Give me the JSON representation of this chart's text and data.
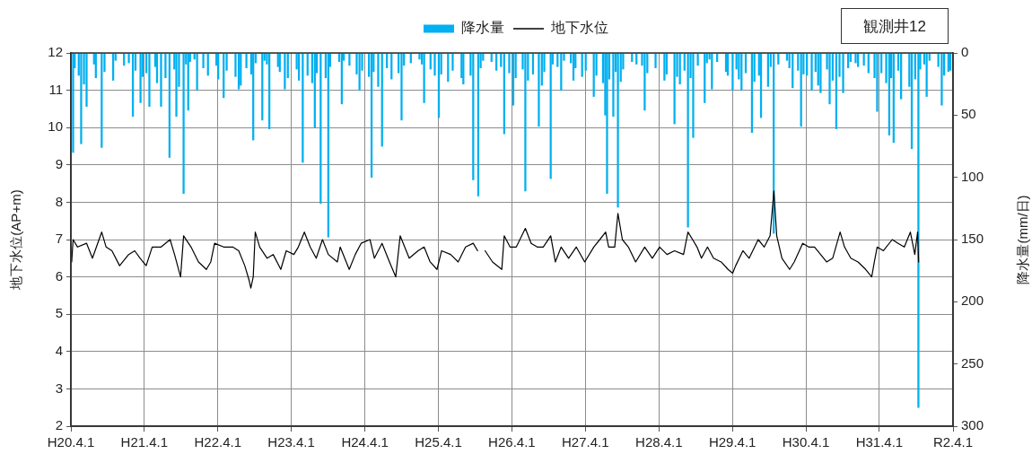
{
  "chart_data": {
    "type": "bar",
    "title": "観測井12",
    "ylabel": "地下水位(AP+m)",
    "y2label": "降水量(mm/日)",
    "xlim": [
      "2008-04-01",
      "2020-04-01"
    ],
    "xticks": [
      {
        "value": "2008-04-01",
        "label": "H20.4.1"
      },
      {
        "value": "2009-04-01",
        "label": "H21.4.1"
      },
      {
        "value": "2010-04-01",
        "label": "H22.4.1"
      },
      {
        "value": "2011-04-01",
        "label": "H23.4.1"
      },
      {
        "value": "2012-04-01",
        "label": "H24.4.1"
      },
      {
        "value": "2013-04-01",
        "label": "H25.4.1"
      },
      {
        "value": "2014-04-01",
        "label": "H26.4.1"
      },
      {
        "value": "2015-04-01",
        "label": "H27.4.1"
      },
      {
        "value": "2016-04-01",
        "label": "H28.4.1"
      },
      {
        "value": "2017-04-01",
        "label": "H29.4.1"
      },
      {
        "value": "2018-04-01",
        "label": "H30.4.1"
      },
      {
        "value": "2019-04-01",
        "label": "H31.4.1"
      },
      {
        "value": "2020-04-01",
        "label": "R2.4.1"
      }
    ],
    "ylim": [
      2,
      12
    ],
    "yticks": [
      2,
      3,
      4,
      5,
      6,
      7,
      8,
      9,
      10,
      11,
      12
    ],
    "y2lim": [
      300,
      0
    ],
    "y2ticks": [
      0,
      50,
      100,
      150,
      200,
      250,
      300
    ],
    "grid": true,
    "legend": "top",
    "series": [
      {
        "name": "降水量",
        "axis": "y2",
        "color": "#00b0f0",
        "x": [
          "2008-04-12",
          "2008-04-20",
          "2008-05-10",
          "2008-05-22",
          "2008-06-05",
          "2008-06-18",
          "2008-07-25",
          "2008-08-03",
          "2008-09-01",
          "2008-09-15",
          "2008-10-28",
          "2008-11-09",
          "2008-12-21",
          "2009-01-14",
          "2009-02-03",
          "2009-02-16",
          "2009-03-13",
          "2009-03-24",
          "2009-04-11",
          "2009-04-26",
          "2009-05-25",
          "2009-06-03",
          "2009-06-23",
          "2009-07-15",
          "2009-08-04",
          "2009-08-28",
          "2009-09-07",
          "2009-09-20",
          "2009-10-13",
          "2009-10-25",
          "2009-11-05",
          "2009-11-14",
          "2009-12-06",
          "2009-12-19",
          "2010-01-19",
          "2010-02-11",
          "2010-03-25",
          "2010-04-03",
          "2010-04-30",
          "2010-05-15",
          "2010-06-28",
          "2010-07-14",
          "2010-07-24",
          "2010-08-21",
          "2010-09-14",
          "2010-09-24",
          "2010-10-06",
          "2010-11-08",
          "2010-11-19",
          "2010-12-01",
          "2010-12-13",
          "2011-01-25",
          "2011-02-03",
          "2011-02-28",
          "2011-03-15",
          "2011-04-28",
          "2011-05-09",
          "2011-05-28",
          "2011-06-21",
          "2011-07-14",
          "2011-07-27",
          "2011-08-06",
          "2011-08-25",
          "2011-09-19",
          "2011-10-02",
          "2011-10-11",
          "2011-11-25",
          "2011-12-08",
          "2011-12-18",
          "2012-01-15",
          "2012-02-20",
          "2012-03-05",
          "2012-03-18",
          "2012-04-21",
          "2012-05-04",
          "2012-05-14",
          "2012-06-06",
          "2012-06-25",
          "2012-07-19",
          "2012-08-11",
          "2012-09-15",
          "2012-09-30",
          "2012-10-12",
          "2012-11-15",
          "2012-12-28",
          "2013-01-09",
          "2013-01-20",
          "2013-02-21",
          "2013-03-14",
          "2013-04-03",
          "2013-04-15",
          "2013-05-19",
          "2013-06-11",
          "2013-07-25",
          "2013-08-03",
          "2013-09-08",
          "2013-09-21",
          "2013-10-16",
          "2013-10-28",
          "2013-11-09",
          "2013-12-21",
          "2014-01-14",
          "2014-02-06",
          "2014-02-22",
          "2014-03-19",
          "2014-04-08",
          "2014-04-20",
          "2014-05-25",
          "2014-06-07",
          "2014-06-20",
          "2014-07-15",
          "2014-08-13",
          "2014-08-28",
          "2014-09-09",
          "2014-10-11",
          "2014-10-21",
          "2014-11-14",
          "2014-12-02",
          "2014-12-16",
          "2015-01-19",
          "2015-02-01",
          "2015-02-11",
          "2015-03-16",
          "2015-04-03",
          "2015-05-13",
          "2015-05-26",
          "2015-06-28",
          "2015-07-09",
          "2015-07-18",
          "2015-07-29",
          "2015-08-18",
          "2015-08-30",
          "2015-09-10",
          "2015-09-24",
          "2015-10-06",
          "2015-11-19",
          "2015-12-11",
          "2016-01-08",
          "2016-01-21",
          "2016-02-03",
          "2016-03-15",
          "2016-04-28",
          "2016-05-09",
          "2016-06-17",
          "2016-06-30",
          "2016-07-14",
          "2016-08-06",
          "2016-08-23",
          "2016-09-05",
          "2016-09-18",
          "2016-10-11",
          "2016-11-14",
          "2016-11-25",
          "2016-12-08",
          "2016-12-20",
          "2017-01-15",
          "2017-02-28",
          "2017-03-09",
          "2017-04-02",
          "2017-04-21",
          "2017-05-03",
          "2017-05-16",
          "2017-06-06",
          "2017-07-07",
          "2017-07-19",
          "2017-08-11",
          "2017-08-21",
          "2017-09-25",
          "2017-10-08",
          "2017-10-23",
          "2017-11-15",
          "2017-12-28",
          "2018-01-09",
          "2018-01-25",
          "2018-02-21",
          "2018-03-08",
          "2018-03-20",
          "2018-04-06",
          "2018-04-30",
          "2018-05-19",
          "2018-06-01",
          "2018-06-13",
          "2018-07-15",
          "2018-07-28",
          "2018-08-12",
          "2018-08-30",
          "2018-09-15",
          "2018-10-03",
          "2018-10-28",
          "2018-11-09",
          "2018-12-04",
          "2018-12-16",
          "2019-01-14",
          "2019-02-06",
          "2019-03-08",
          "2019-03-21",
          "2019-04-11",
          "2019-05-05",
          "2019-05-20",
          "2019-05-30",
          "2019-06-11",
          "2019-07-04",
          "2019-07-18",
          "2019-08-28",
          "2019-09-09",
          "2019-09-26",
          "2019-10-12",
          "2019-10-21",
          "2019-11-10",
          "2019-11-22",
          "2019-12-06",
          "2020-01-19",
          "2020-02-05",
          "2020-02-17",
          "2020-03-09",
          "2020-03-19"
        ],
        "values": [
          80,
          12,
          18,
          73,
          25,
          43,
          9,
          20,
          76,
          15,
          22,
          6,
          10,
          8,
          51,
          14,
          40,
          19,
          16,
          43,
          11,
          24,
          43,
          20,
          84,
          13,
          51,
          27,
          113,
          9,
          46,
          7,
          5,
          30,
          12,
          18,
          10,
          21,
          36,
          14,
          19,
          29,
          26,
          12,
          17,
          70,
          8,
          54,
          6,
          9,
          61,
          11,
          15,
          29,
          20,
          13,
          22,
          88,
          18,
          24,
          60,
          16,
          121,
          20,
          148,
          11,
          7,
          41,
          6,
          10,
          17,
          30,
          14,
          19,
          100,
          15,
          27,
          75,
          12,
          21,
          16,
          54,
          10,
          8,
          5,
          9,
          40,
          13,
          18,
          52,
          17,
          23,
          14,
          20,
          25,
          18,
          102,
          115,
          12,
          6,
          7,
          14,
          11,
          65,
          16,
          42,
          20,
          13,
          111,
          22,
          17,
          59,
          26,
          15,
          101,
          9,
          11,
          30,
          6,
          8,
          22,
          12,
          19,
          14,
          35,
          18,
          24,
          50,
          113,
          21,
          51,
          15,
          124,
          23,
          13,
          7,
          9,
          10,
          46,
          16,
          12,
          22,
          17,
          57,
          19,
          25,
          14,
          140,
          20,
          68,
          10,
          40,
          8,
          5,
          29,
          7,
          15,
          18,
          30,
          13,
          21,
          30,
          16,
          64,
          23,
          18,
          52,
          27,
          11,
          145,
          9,
          6,
          12,
          28,
          14,
          59,
          17,
          18,
          30,
          15,
          26,
          32,
          13,
          41,
          22,
          61,
          19,
          32,
          12,
          7,
          8,
          11,
          10,
          16,
          20,
          47,
          16,
          24,
          66,
          20,
          72,
          14,
          37,
          27,
          77,
          21,
          285,
          13,
          9,
          35,
          6,
          11,
          42,
          18,
          15,
          14
        ]
      },
      {
        "name": "地下水位",
        "type": "line",
        "color": "#000000",
        "x": [
          "2008-04-05",
          "2008-04-12",
          "2008-05-04",
          "2008-06-18",
          "2008-07-17",
          "2008-09-01",
          "2008-09-23",
          "2008-10-22",
          "2008-11-29",
          "2009-01-13",
          "2009-02-12",
          "2009-03-11",
          "2009-04-10",
          "2009-05-10",
          "2009-06-23",
          "2009-08-07",
          "2009-08-29",
          "2009-09-28",
          "2009-10-13",
          "2009-11-19",
          "2009-12-26",
          "2010-02-03",
          "2010-02-25",
          "2010-03-16",
          "2010-04-30",
          "2010-06-14",
          "2010-07-14",
          "2010-08-13",
          "2010-09-04",
          "2010-09-12",
          "2010-09-24",
          "2010-10-04",
          "2010-10-26",
          "2010-12-02",
          "2011-01-01",
          "2011-02-08",
          "2011-03-07",
          "2011-04-14",
          "2011-05-06",
          "2011-06-05",
          "2011-07-04",
          "2011-08-03",
          "2011-09-03",
          "2011-10-02",
          "2011-11-16",
          "2011-11-30",
          "2012-01-14",
          "2012-02-13",
          "2012-03-13",
          "2012-04-26",
          "2012-05-18",
          "2012-06-25",
          "2012-08-01",
          "2012-09-01",
          "2012-09-23",
          "2012-11-07",
          "2012-12-21",
          "2013-01-20",
          "2013-02-19",
          "2013-03-25",
          "2013-04-17",
          "2013-06-01",
          "2013-07-08",
          "2013-08-14",
          "2013-09-21",
          "2013-10-13",
          "2013-11-01",
          "2013-11-19",
          "2013-12-26",
          "2014-02-10",
          "2014-02-22",
          "2014-03-23",
          "2014-04-23",
          "2014-06-07",
          "2014-07-06",
          "2014-08-05",
          "2014-09-04",
          "2014-10-11",
          "2014-11-03",
          "2014-12-02",
          "2015-01-08",
          "2015-02-15",
          "2015-03-29",
          "2015-05-13",
          "2015-06-12",
          "2015-07-11",
          "2015-07-26",
          "2015-08-25",
          "2015-09-10",
          "2015-10-02",
          "2015-11-01",
          "2015-12-07",
          "2016-01-21",
          "2016-02-28",
          "2016-04-04",
          "2016-05-11",
          "2016-06-17",
          "2016-08-01",
          "2016-08-23",
          "2016-09-15",
          "2016-10-07",
          "2016-10-29",
          "2016-11-28",
          "2016-12-28",
          "2017-02-04",
          "2017-03-10",
          "2017-04-02",
          "2017-04-17",
          "2017-05-23",
          "2017-06-23",
          "2017-08-07",
          "2017-09-06",
          "2017-10-05",
          "2017-10-24",
          "2017-11-07",
          "2017-12-03",
          "2018-01-10",
          "2018-02-02",
          "2018-03-16",
          "2018-04-15",
          "2018-05-14",
          "2018-06-13",
          "2018-07-13",
          "2018-08-12",
          "2018-09-18",
          "2018-10-10",
          "2018-11-10",
          "2018-12-16",
          "2019-01-23",
          "2019-02-22",
          "2019-03-07",
          "2019-03-21",
          "2019-04-21",
          "2019-06-04",
          "2019-07-03",
          "2019-08-03",
          "2019-09-02",
          "2019-09-24",
          "2019-10-08",
          "2019-10-13"
        ],
        "values": [
          6.4,
          7.0,
          6.8,
          6.9,
          6.5,
          7.2,
          6.8,
          6.7,
          6.3,
          6.6,
          6.7,
          6.5,
          6.3,
          6.8,
          6.8,
          7.0,
          6.6,
          6.0,
          7.1,
          6.8,
          6.4,
          6.2,
          6.4,
          6.9,
          6.8,
          6.8,
          6.7,
          6.3,
          5.9,
          5.7,
          6.0,
          7.2,
          6.8,
          6.5,
          6.6,
          6.2,
          6.7,
          6.6,
          6.8,
          7.2,
          6.8,
          6.5,
          7.0,
          6.6,
          6.4,
          6.8,
          6.2,
          6.6,
          6.9,
          7.0,
          6.5,
          6.9,
          6.4,
          6.0,
          7.1,
          6.5,
          6.7,
          6.8,
          6.4,
          6.2,
          6.7,
          6.6,
          6.4,
          6.8,
          6.9,
          6.7,
          null,
          6.7,
          6.4,
          6.2,
          7.1,
          6.8,
          6.8,
          7.3,
          6.9,
          6.8,
          6.8,
          7.1,
          6.4,
          6.8,
          6.5,
          6.8,
          6.4,
          6.8,
          7.0,
          7.2,
          6.8,
          6.8,
          7.7,
          7.0,
          6.8,
          6.4,
          6.8,
          6.5,
          6.8,
          6.6,
          6.7,
          6.6,
          7.2,
          7.0,
          6.8,
          6.5,
          6.8,
          6.5,
          6.4,
          6.2,
          6.1,
          6.3,
          6.7,
          6.5,
          7.0,
          6.8,
          7.1,
          8.3,
          7.1,
          6.5,
          6.2,
          6.4,
          6.9,
          6.8,
          6.8,
          6.6,
          6.4,
          6.5,
          7.2,
          6.8,
          6.5,
          6.4,
          6.2,
          6.0,
          6.4,
          6.8,
          6.7,
          7.0,
          6.9,
          6.8,
          7.2,
          6.6,
          7.2,
          6.4
        ]
      }
    ]
  }
}
